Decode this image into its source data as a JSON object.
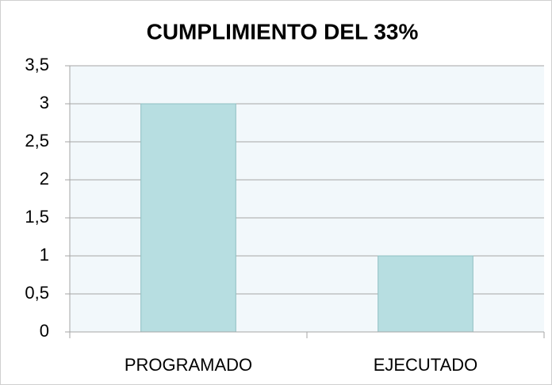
{
  "chart_data": {
    "type": "bar",
    "title": "CUMPLIMIENTO DEL 33%",
    "categories": [
      "PROGRAMADO",
      "EJECUTADO"
    ],
    "values": [
      3,
      1
    ],
    "color": "#b7dee1",
    "ylim": [
      0,
      3.5
    ],
    "yticks": [
      0,
      {
        "value": 0.5,
        "label": "0,5"
      },
      1,
      {
        "value": 1.5,
        "label": "1,5"
      },
      2,
      {
        "value": 2.5,
        "label": "2,5"
      },
      3,
      {
        "value": 3.5,
        "label": "3,5"
      }
    ],
    "grid": true
  }
}
